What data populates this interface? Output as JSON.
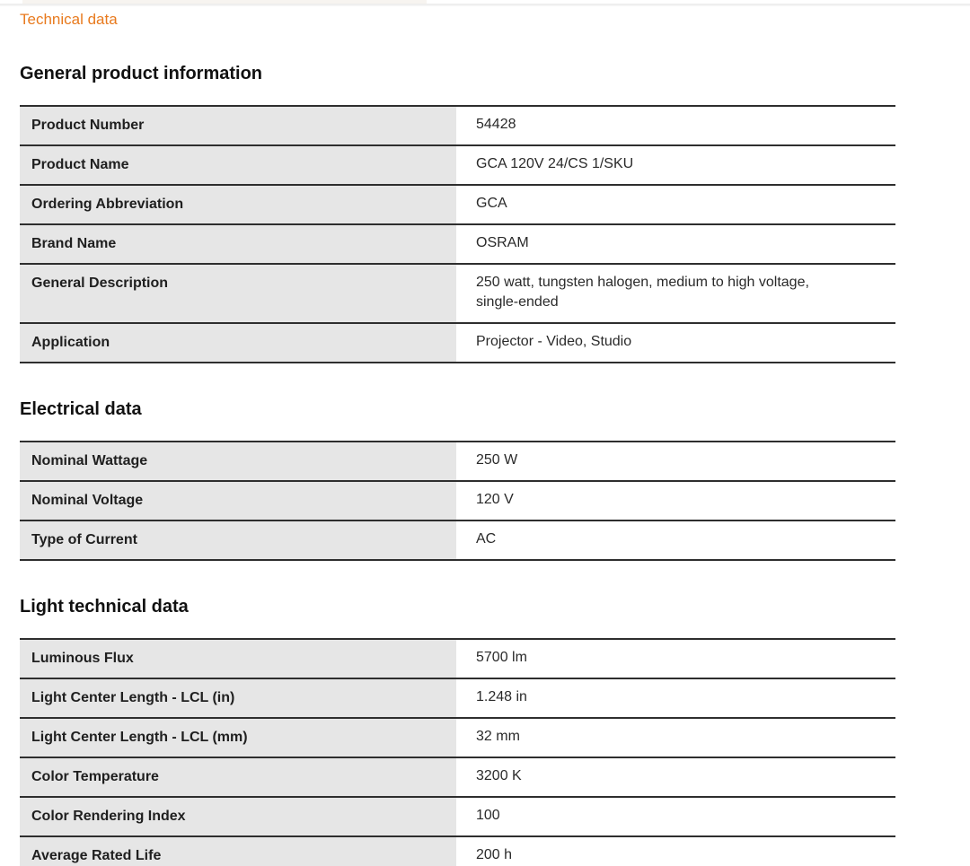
{
  "page": {
    "technical_data_link": "Technical data",
    "accent_orange": "#e87a1e",
    "label_cell_bg": "#e6e6e6",
    "row_border_color": "#2e2e2e"
  },
  "sections": [
    {
      "heading": "General product information",
      "rows": [
        {
          "label": "Product Number",
          "value": "54428"
        },
        {
          "label": "Product Name",
          "value": "GCA 120V 24/CS 1/SKU"
        },
        {
          "label": "Ordering Abbreviation",
          "value": "GCA"
        },
        {
          "label": "Brand Name",
          "value": "OSRAM"
        },
        {
          "label": "General Description",
          "value": "250 watt, tungsten halogen, medium to high voltage,\nsingle-ended"
        },
        {
          "label": "Application",
          "value": "Projector - Video, Studio"
        }
      ]
    },
    {
      "heading": "Electrical data",
      "rows": [
        {
          "label": "Nominal Wattage",
          "value": "250 W"
        },
        {
          "label": "Nominal Voltage",
          "value": "120 V"
        },
        {
          "label": "Type of Current",
          "value": "AC"
        }
      ]
    },
    {
      "heading": "Light technical data",
      "rows": [
        {
          "label": "Luminous Flux",
          "value": "5700 lm"
        },
        {
          "label": "Light Center Length - LCL (in)",
          "value": "1.248 in"
        },
        {
          "label": "Light Center Length - LCL (mm)",
          "value": "32 mm"
        },
        {
          "label": "Color Temperature",
          "value": "3200 K"
        },
        {
          "label": "Color Rendering Index",
          "value": "100"
        },
        {
          "label": "Average Rated Life",
          "value": "200 h"
        }
      ]
    }
  ]
}
